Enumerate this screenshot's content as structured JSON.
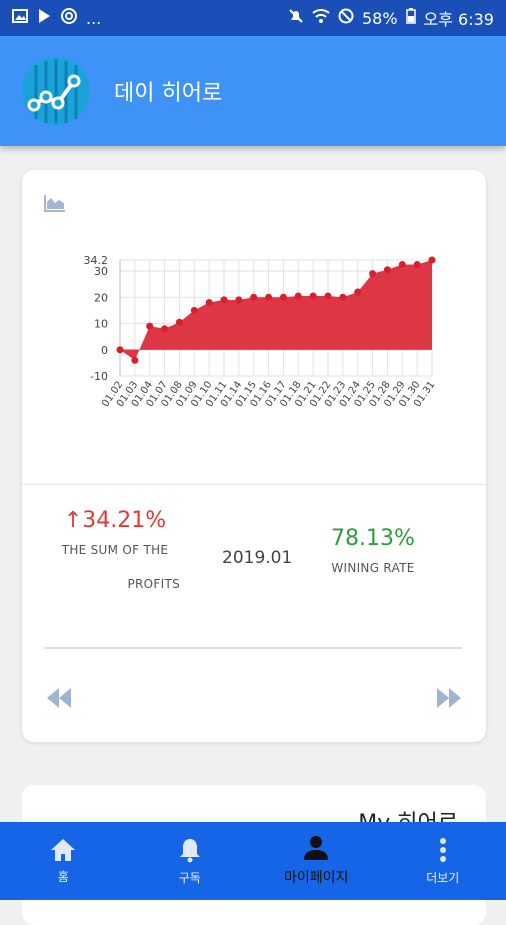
{
  "status_bar": {
    "left_icons": [
      "image-icon",
      "play-store-icon",
      "at-icon"
    ],
    "more": "...",
    "battery": "58%",
    "time": "오후 6:39"
  },
  "app_bar": {
    "title": "데이 히어로",
    "logo_icon": "chart-line-logo-icon"
  },
  "summary": {
    "profit_value": "↑34.21%",
    "profit_label_line1": "THE SUM OF THE",
    "profit_label_line2": "PROFITS",
    "period": "2019.01",
    "win_rate_value": "78.13%",
    "win_rate_label": "WINING RATE",
    "prev_icon": "rewind-icon",
    "next_icon": "fast-forward-icon"
  },
  "card2": {
    "title": "My 히어로"
  },
  "bottom_nav": [
    {
      "label": "홈",
      "icon": "home-icon"
    },
    {
      "label": "구독",
      "icon": "bell-icon"
    },
    {
      "label": "마이페이지",
      "icon": "person-icon",
      "active": true
    },
    {
      "label": "더보기",
      "icon": "more-vertical-icon"
    }
  ],
  "colors": {
    "status_bar": "#1a4fb8",
    "app_bar": "#3f93f7",
    "bottom_nav": "#1565e6",
    "chart_fill": "#dd3645",
    "profit": "#e53935",
    "win_rate": "#2e9e3a"
  },
  "chart_data": {
    "type": "area",
    "x": [
      "01.02",
      "01.03",
      "01.04",
      "01.07",
      "01.08",
      "01.09",
      "01.10",
      "01.11",
      "01.14",
      "01.15",
      "01.16",
      "01.17",
      "01.18",
      "01.21",
      "01.22",
      "01.23",
      "01.24",
      "01.25",
      "01.28",
      "01.29",
      "01.30",
      "01.31"
    ],
    "values": [
      0,
      -4,
      9,
      8,
      10.5,
      15,
      18,
      19,
      19,
      20,
      20,
      20,
      20.5,
      20.5,
      20.5,
      20,
      22,
      29,
      30.5,
      32.5,
      32.5,
      34.2
    ],
    "y_ticks": [
      -10,
      0,
      10,
      20,
      30,
      34.2
    ],
    "ylim": [
      -10,
      34.2
    ],
    "grid": true,
    "title": "",
    "xlabel": "",
    "ylabel": ""
  }
}
